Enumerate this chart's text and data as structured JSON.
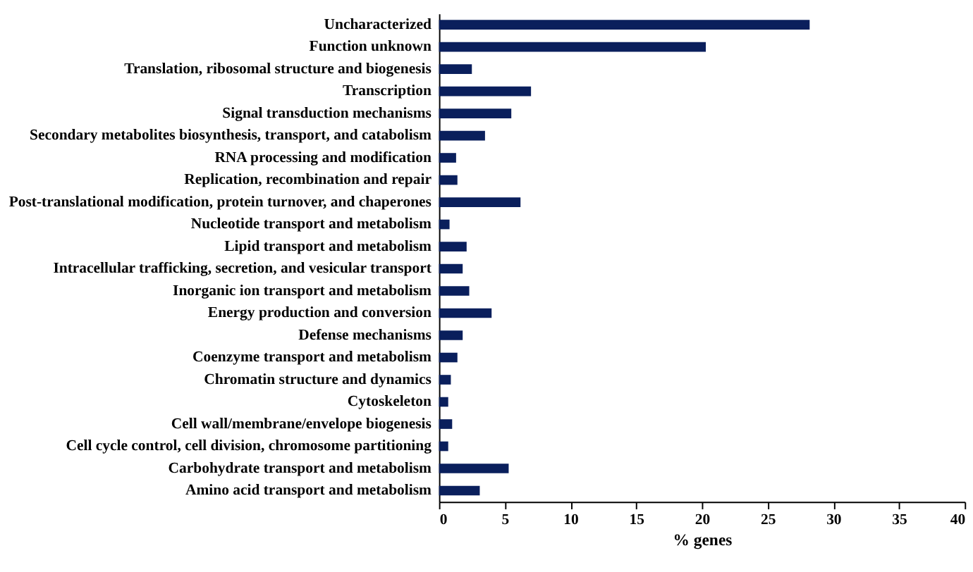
{
  "chart_data": {
    "type": "bar",
    "orientation": "horizontal",
    "xlabel": "% genes",
    "categories": [
      "Uncharacterized",
      "Function unknown",
      "Translation, ribosomal structure and biogenesis",
      "Transcription",
      "Signal transduction mechanisms",
      "Secondary metabolites biosynthesis, transport, and catabolism",
      "RNA processing and modification",
      "Replication, recombination and repair",
      "Post-translational modification, protein turnover, and chaperones",
      "Nucleotide transport and metabolism",
      "Lipid transport and metabolism",
      "Intracellular trafficking, secretion, and vesicular transport",
      "Inorganic ion transport and metabolism",
      "Energy production and conversion",
      "Defense mechanisms",
      "Coenzyme transport and metabolism",
      "Chromatin structure and dynamics",
      "Cytoskeleton",
      "Cell wall/membrane/envelope biogenesis",
      "Cell cycle control, cell division, chromosome partitioning",
      "Carbohydrate transport and metabolism",
      "Amino acid transport and metabolism"
    ],
    "values": [
      28.2,
      20.3,
      2.5,
      7.0,
      5.5,
      3.5,
      1.3,
      1.4,
      6.2,
      0.8,
      2.1,
      1.8,
      2.3,
      4.0,
      1.8,
      1.4,
      0.9,
      0.7,
      1.0,
      0.7,
      5.3,
      3.1
    ],
    "color": "#0a1f5c",
    "xlim": [
      0,
      40
    ],
    "xticks": [
      0,
      5,
      10,
      15,
      20,
      25,
      30,
      35,
      40
    ],
    "grid": false
  }
}
